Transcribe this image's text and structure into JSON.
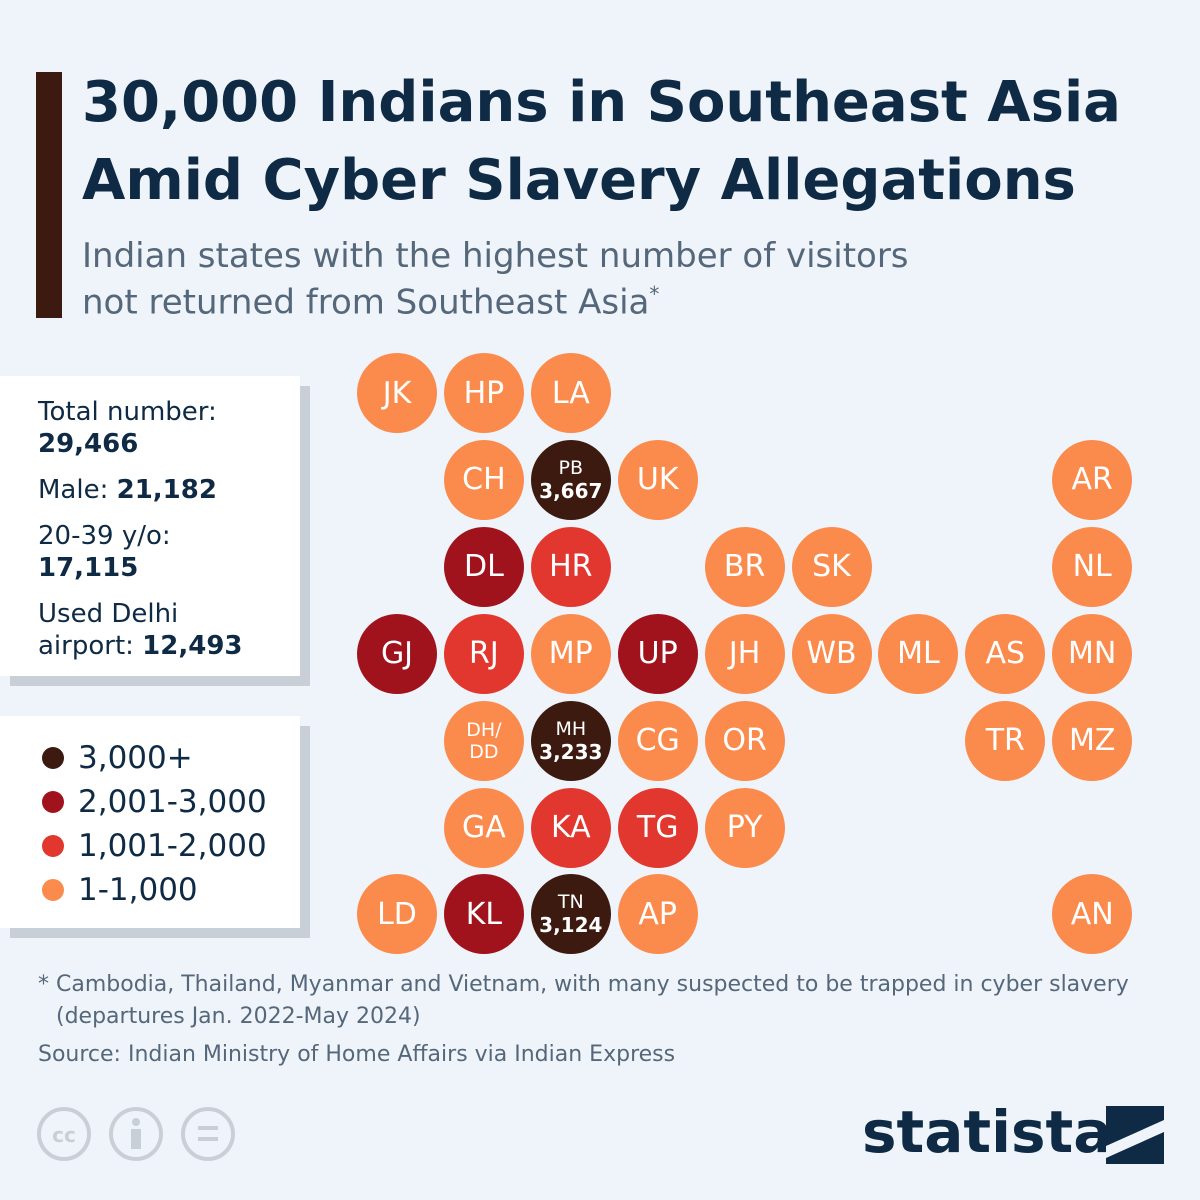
{
  "header": {
    "title": [
      "30,000 Indians in Southeast Asia",
      "Amid Cyber Slavery Allegations"
    ],
    "subtitle": [
      "Indian states with the highest number of visitors",
      "not returned from Southeast Asia"
    ],
    "subtitle_mark": "*"
  },
  "stats": [
    {
      "label": "Total number:",
      "value": "29,466"
    },
    {
      "label": "Male:",
      "value": "21,182"
    },
    {
      "label": "20-39 y/o:",
      "value": "17,115"
    },
    {
      "label": "Used Delhi airport:",
      "value": "12,493"
    }
  ],
  "legend": [
    {
      "label": "3,000+",
      "color": "#3d1a0f"
    },
    {
      "label": "2,001-3,000",
      "color": "#a0131d"
    },
    {
      "label": "1,001-2,000",
      "color": "#e2372e"
    },
    {
      "label": "1-1,000",
      "color": "#fb8b4d"
    }
  ],
  "tiles": [
    {
      "label": "JK",
      "color": "#fb8b4d"
    },
    {
      "label": "HP",
      "color": "#fb8b4d"
    },
    {
      "label": "LA",
      "color": "#fb8b4d"
    },
    {
      "label": "CH",
      "color": "#fb8b4d"
    },
    {
      "label": "PB",
      "value": "3,667",
      "color": "#3d1a0f"
    },
    {
      "label": "UK",
      "color": "#fb8b4d"
    },
    {
      "label": "AR",
      "color": "#fb8b4d"
    },
    {
      "label": "DL",
      "color": "#a0131d"
    },
    {
      "label": "HR",
      "color": "#e2372e"
    },
    {
      "label": "BR",
      "color": "#fb8b4d"
    },
    {
      "label": "SK",
      "color": "#fb8b4d"
    },
    {
      "label": "NL",
      "color": "#fb8b4d"
    },
    {
      "label": "GJ",
      "color": "#a0131d"
    },
    {
      "label": "RJ",
      "color": "#e2372e"
    },
    {
      "label": "MP",
      "color": "#fb8b4d"
    },
    {
      "label": "UP",
      "color": "#a0131d"
    },
    {
      "label": "JH",
      "color": "#fb8b4d"
    },
    {
      "label": "WB",
      "color": "#fb8b4d"
    },
    {
      "label": "ML",
      "color": "#fb8b4d"
    },
    {
      "label": "AS",
      "color": "#fb8b4d"
    },
    {
      "label": "MN",
      "color": "#fb8b4d"
    },
    {
      "label": "DH/ DD",
      "color": "#fb8b4d"
    },
    {
      "label": "MH",
      "value": "3,233",
      "color": "#3d1a0f"
    },
    {
      "label": "CG",
      "color": "#fb8b4d"
    },
    {
      "label": "OR",
      "color": "#fb8b4d"
    },
    {
      "label": "TR",
      "color": "#fb8b4d"
    },
    {
      "label": "MZ",
      "color": "#fb8b4d"
    },
    {
      "label": "GA",
      "color": "#fb8b4d"
    },
    {
      "label": "KA",
      "color": "#e2372e"
    },
    {
      "label": "TG",
      "color": "#e2372e"
    },
    {
      "label": "PY",
      "color": "#fb8b4d"
    },
    {
      "label": "LD",
      "color": "#fb8b4d"
    },
    {
      "label": "KL",
      "color": "#a0131d"
    },
    {
      "label": "TN",
      "value": "3,124",
      "color": "#3d1a0f"
    },
    {
      "label": "AP",
      "color": "#fb8b4d"
    },
    {
      "label": "AN",
      "color": "#fb8b4d"
    }
  ],
  "footer": {
    "note": [
      "* Cambodia, Thailand, Myanmar and Vietnam, with many suspected to be trapped in cyber slavery",
      "(departures Jan. 2022-May 2024)"
    ],
    "source": "Source: Indian Ministry of Home Affairs via Indian Express",
    "brand": "statista"
  }
}
